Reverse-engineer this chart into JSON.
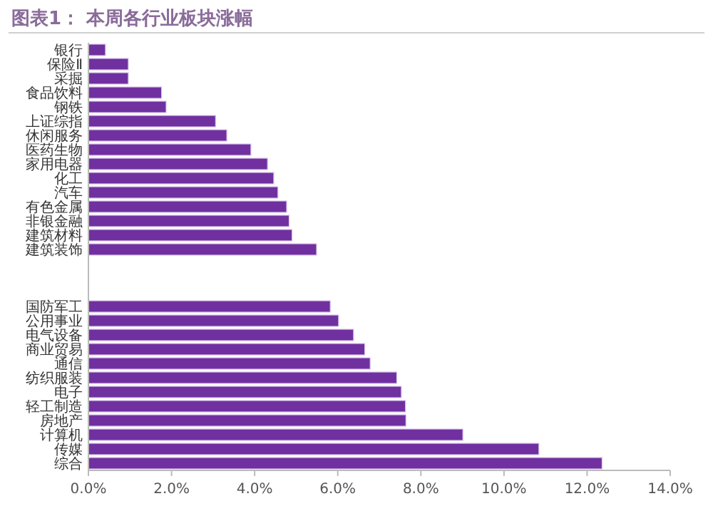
{
  "chart_data": {
    "type": "bar",
    "orientation": "horizontal",
    "title": "图表1：  本周各行业板块涨幅",
    "categories": [
      "银行",
      "保险Ⅱ",
      "采掘",
      "食品饮料",
      "钢铁",
      "上证综指",
      "休闲服务",
      "医药生物",
      "家用电器",
      "化工",
      "汽车",
      "有色金属",
      "非银金融",
      "建筑材料",
      "建筑装饰",
      null,
      null,
      null,
      "国防军工",
      "公用事业",
      "电气设备",
      "商业贸易",
      "通信",
      "纺织服装",
      "电子",
      "轻工制造",
      "房地产",
      "计算机",
      "传媒",
      "综合"
    ],
    "values": [
      0.41,
      0.96,
      0.96,
      1.76,
      1.87,
      3.06,
      3.33,
      3.91,
      4.31,
      4.46,
      4.56,
      4.77,
      4.83,
      4.9,
      5.49,
      null,
      null,
      null,
      5.82,
      6.02,
      6.38,
      6.65,
      6.78,
      7.42,
      7.53,
      7.63,
      7.64,
      9.01,
      10.84,
      12.36
    ],
    "color": "#7030a0",
    "xlim": [
      0,
      14
    ],
    "xticks": [
      {
        "value": 0,
        "label": "0.0%"
      },
      {
        "value": 2,
        "label": "2.0%"
      },
      {
        "value": 4,
        "label": "4.0%"
      },
      {
        "value": 6,
        "label": "6.0%"
      },
      {
        "value": 8,
        "label": "8.0%"
      },
      {
        "value": 10,
        "label": "10.0%"
      },
      {
        "value": 12,
        "label": "12.0%"
      },
      {
        "value": 14,
        "label": "14.0%"
      }
    ]
  }
}
